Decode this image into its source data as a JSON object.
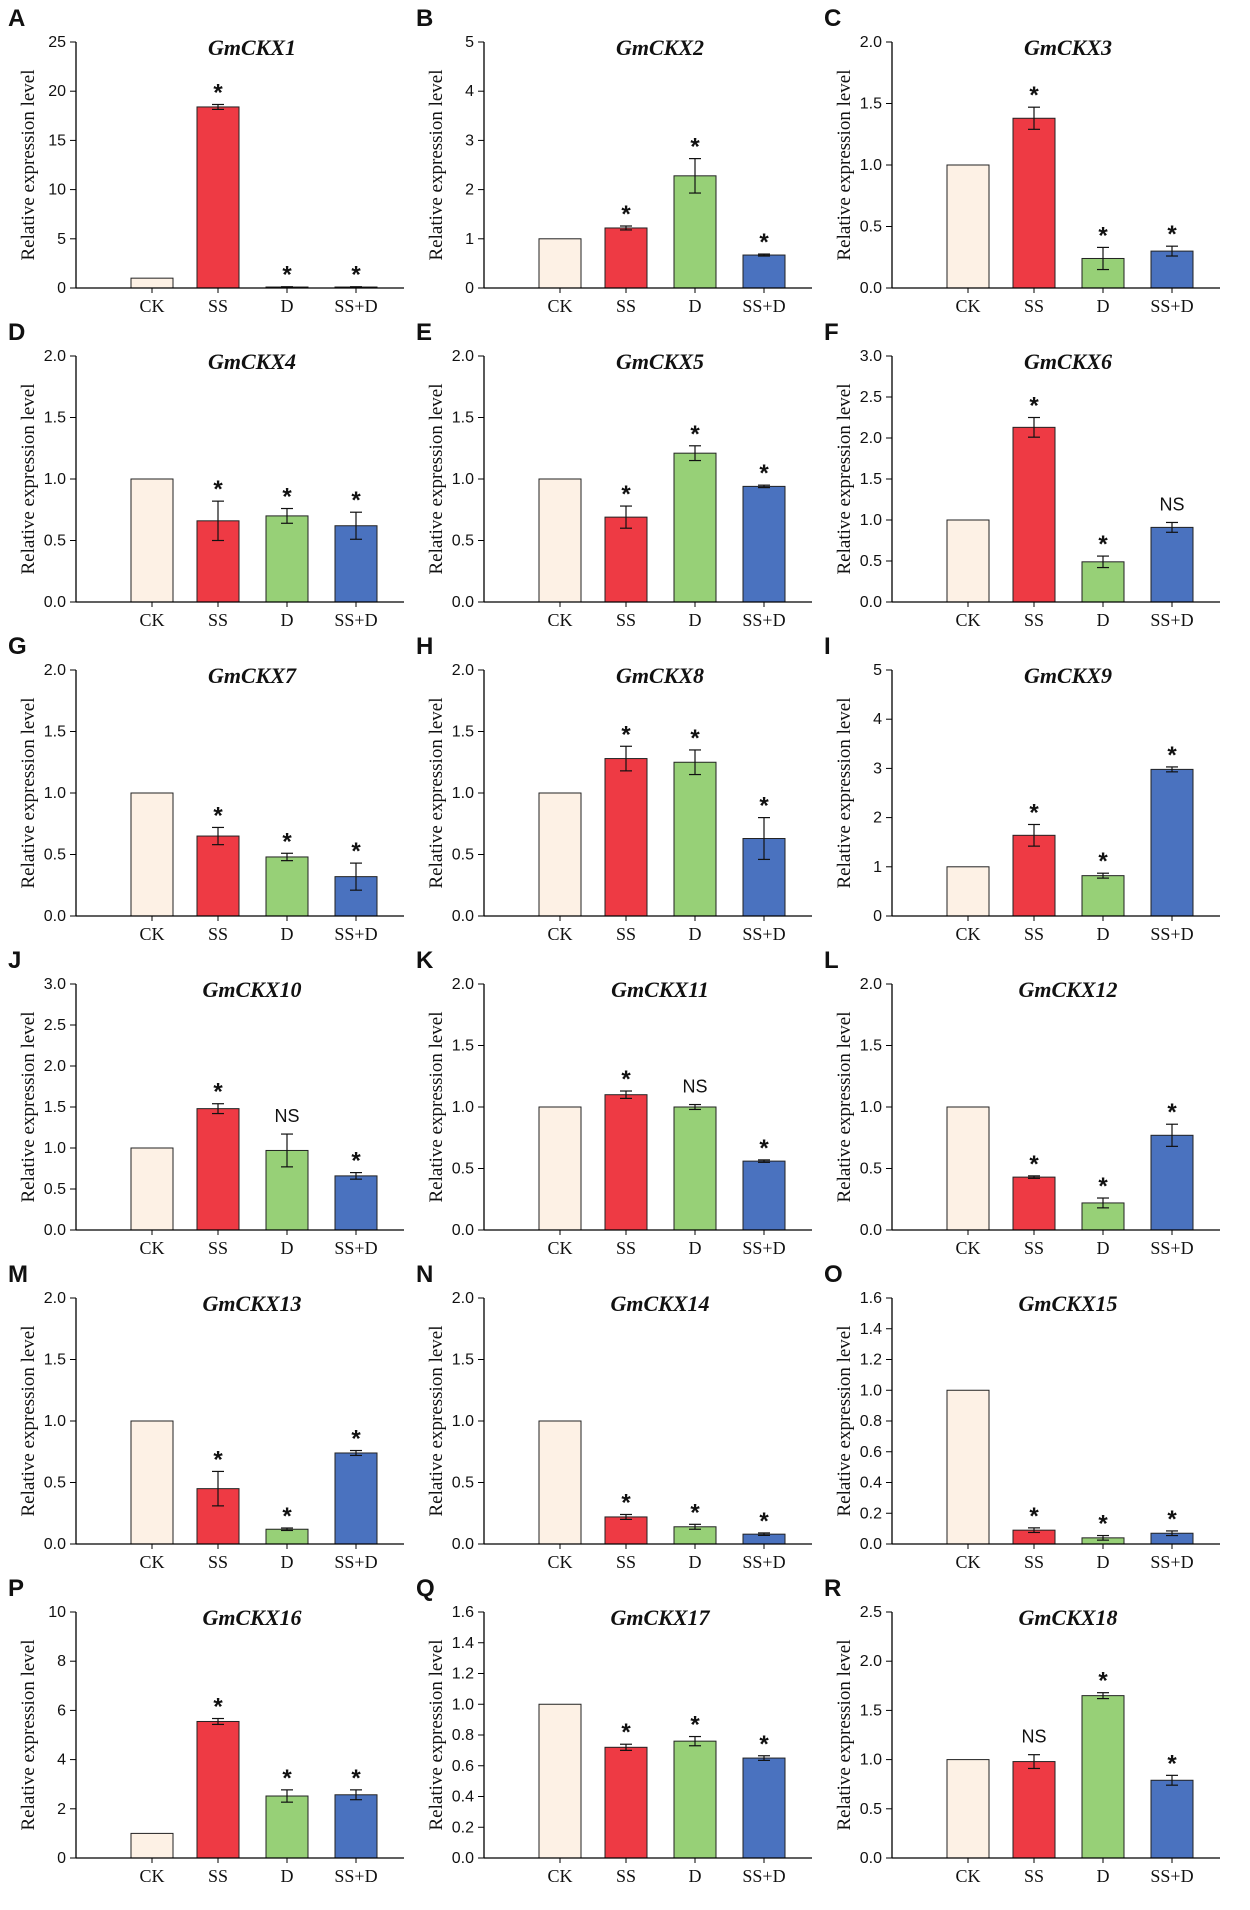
{
  "figure": {
    "categories": [
      "CK",
      "SS",
      "D",
      "SS+D"
    ],
    "bar_colors": [
      "#fdf1e5",
      "#ee3a44",
      "#97d077",
      "#4a72bf"
    ],
    "axis_color": "#000000"
  },
  "chart_data": [
    {
      "type": "bar",
      "panel": "A",
      "title": "GmCKX1",
      "ylabel": "Relative expression level",
      "categories": [
        "CK",
        "SS",
        "D",
        "SS+D"
      ],
      "ylim": [
        0,
        25
      ],
      "yticks": [
        "0",
        "5",
        "10",
        "15",
        "20",
        "25"
      ],
      "values": [
        1.0,
        18.4,
        0.1,
        0.1
      ],
      "errors": [
        0,
        0.25,
        0.03,
        0.03
      ],
      "significance": [
        "",
        "*",
        "*",
        "*"
      ]
    },
    {
      "type": "bar",
      "panel": "B",
      "title": "GmCKX2",
      "ylabel": "Relative expression level",
      "categories": [
        "CK",
        "SS",
        "D",
        "SS+D"
      ],
      "ylim": [
        0,
        5
      ],
      "yticks": [
        "0",
        "1",
        "2",
        "3",
        "4",
        "5"
      ],
      "values": [
        1.0,
        1.22,
        2.28,
        0.67
      ],
      "errors": [
        0,
        0.04,
        0.35,
        0.02
      ],
      "significance": [
        "",
        "*",
        "*",
        "*"
      ]
    },
    {
      "type": "bar",
      "panel": "C",
      "title": "GmCKX3",
      "ylabel": "Relative expression level",
      "categories": [
        "CK",
        "SS",
        "D",
        "SS+D"
      ],
      "ylim": [
        0,
        2.0
      ],
      "yticks": [
        "0.0",
        "0.5",
        "1.0",
        "1.5",
        "2.0"
      ],
      "values": [
        1.0,
        1.38,
        0.24,
        0.3
      ],
      "errors": [
        0,
        0.09,
        0.09,
        0.04
      ],
      "significance": [
        "",
        "*",
        "*",
        "*"
      ]
    },
    {
      "type": "bar",
      "panel": "D",
      "title": "GmCKX4",
      "ylabel": "Relative expression level",
      "categories": [
        "CK",
        "SS",
        "D",
        "SS+D"
      ],
      "ylim": [
        0,
        2.0
      ],
      "yticks": [
        "0.0",
        "0.5",
        "1.0",
        "1.5",
        "2.0"
      ],
      "values": [
        1.0,
        0.66,
        0.7,
        0.62
      ],
      "errors": [
        0,
        0.16,
        0.06,
        0.11
      ],
      "significance": [
        "",
        "*",
        "*",
        "*"
      ]
    },
    {
      "type": "bar",
      "panel": "E",
      "title": "GmCKX5",
      "ylabel": "Relative expression level",
      "categories": [
        "CK",
        "SS",
        "D",
        "SS+D"
      ],
      "ylim": [
        0,
        2.0
      ],
      "yticks": [
        "0.0",
        "0.5",
        "1.0",
        "1.5",
        "2.0"
      ],
      "values": [
        1.0,
        0.69,
        1.21,
        0.94
      ],
      "errors": [
        0,
        0.09,
        0.06,
        0.01
      ],
      "significance": [
        "",
        "*",
        "*",
        "*"
      ]
    },
    {
      "type": "bar",
      "panel": "F",
      "title": "GmCKX6",
      "ylabel": "Relative expression level",
      "categories": [
        "CK",
        "SS",
        "D",
        "SS+D"
      ],
      "ylim": [
        0,
        3.0
      ],
      "yticks": [
        "0.0",
        "0.5",
        "1.0",
        "1.5",
        "2.0",
        "2.5",
        "3.0"
      ],
      "values": [
        1.0,
        2.13,
        0.49,
        0.91
      ],
      "errors": [
        0,
        0.12,
        0.07,
        0.06
      ],
      "significance": [
        "",
        "*",
        "*",
        "NS"
      ]
    },
    {
      "type": "bar",
      "panel": "G",
      "title": "GmCKX7",
      "ylabel": "Relative expression level",
      "categories": [
        "CK",
        "SS",
        "D",
        "SS+D"
      ],
      "ylim": [
        0,
        2.0
      ],
      "yticks": [
        "0.0",
        "0.5",
        "1.0",
        "1.5",
        "2.0"
      ],
      "values": [
        1.0,
        0.65,
        0.48,
        0.32
      ],
      "errors": [
        0,
        0.07,
        0.03,
        0.11
      ],
      "significance": [
        "",
        "*",
        "*",
        "*"
      ]
    },
    {
      "type": "bar",
      "panel": "H",
      "title": "GmCKX8",
      "ylabel": "Relative expression level",
      "categories": [
        "CK",
        "SS",
        "D",
        "SS+D"
      ],
      "ylim": [
        0,
        2.0
      ],
      "yticks": [
        "0.0",
        "0.5",
        "1.0",
        "1.5",
        "2.0"
      ],
      "values": [
        1.0,
        1.28,
        1.25,
        0.63
      ],
      "errors": [
        0,
        0.1,
        0.1,
        0.17
      ],
      "significance": [
        "",
        "*",
        "*",
        "*"
      ]
    },
    {
      "type": "bar",
      "panel": "I",
      "title": "GmCKX9",
      "ylabel": "Relative expression level",
      "categories": [
        "CK",
        "SS",
        "D",
        "SS+D"
      ],
      "ylim": [
        0,
        5
      ],
      "yticks": [
        "0",
        "1",
        "2",
        "3",
        "4",
        "5"
      ],
      "values": [
        1.0,
        1.64,
        0.82,
        2.98
      ],
      "errors": [
        0,
        0.22,
        0.05,
        0.05
      ],
      "significance": [
        "",
        "*",
        "*",
        "*"
      ]
    },
    {
      "type": "bar",
      "panel": "J",
      "title": "GmCKX10",
      "ylabel": "Relative expression level",
      "categories": [
        "CK",
        "SS",
        "D",
        "SS+D"
      ],
      "ylim": [
        0,
        3.0
      ],
      "yticks": [
        "0.0",
        "0.5",
        "1.0",
        "1.5",
        "2.0",
        "2.5",
        "3.0"
      ],
      "values": [
        1.0,
        1.48,
        0.97,
        0.66
      ],
      "errors": [
        0,
        0.06,
        0.2,
        0.04
      ],
      "significance": [
        "",
        "*",
        "NS",
        "*"
      ]
    },
    {
      "type": "bar",
      "panel": "K",
      "title": "GmCKX11",
      "ylabel": "Relative expression level",
      "categories": [
        "CK",
        "SS",
        "D",
        "SS+D"
      ],
      "ylim": [
        0,
        2.0
      ],
      "yticks": [
        "0.0",
        "0.5",
        "1.0",
        "1.5",
        "2.0"
      ],
      "values": [
        1.0,
        1.1,
        1.0,
        0.56
      ],
      "errors": [
        0,
        0.03,
        0.02,
        0.01
      ],
      "significance": [
        "",
        "*",
        "NS",
        "*"
      ]
    },
    {
      "type": "bar",
      "panel": "L",
      "title": "GmCKX12",
      "ylabel": "Relative expression level",
      "categories": [
        "CK",
        "SS",
        "D",
        "SS+D"
      ],
      "ylim": [
        0,
        2.0
      ],
      "yticks": [
        "0.0",
        "0.5",
        "1.0",
        "1.5",
        "2.0"
      ],
      "values": [
        1.0,
        0.43,
        0.22,
        0.77
      ],
      "errors": [
        0,
        0.01,
        0.04,
        0.09
      ],
      "significance": [
        "",
        "*",
        "*",
        "*"
      ]
    },
    {
      "type": "bar",
      "panel": "M",
      "title": "GmCKX13",
      "ylabel": "Relative expression level",
      "categories": [
        "CK",
        "SS",
        "D",
        "SS+D"
      ],
      "ylim": [
        0,
        2.0
      ],
      "yticks": [
        "0.0",
        "0.5",
        "1.0",
        "1.5",
        "2.0"
      ],
      "values": [
        1.0,
        0.45,
        0.12,
        0.74
      ],
      "errors": [
        0,
        0.14,
        0.01,
        0.02
      ],
      "significance": [
        "",
        "*",
        "*",
        "*"
      ]
    },
    {
      "type": "bar",
      "panel": "N",
      "title": "GmCKX14",
      "ylabel": "Relative expression level",
      "categories": [
        "CK",
        "SS",
        "D",
        "SS+D"
      ],
      "ylim": [
        0,
        2.0
      ],
      "yticks": [
        "0.0",
        "0.5",
        "1.0",
        "1.5",
        "2.0"
      ],
      "values": [
        1.0,
        0.22,
        0.14,
        0.08
      ],
      "errors": [
        0,
        0.02,
        0.02,
        0.01
      ],
      "significance": [
        "",
        "*",
        "*",
        "*"
      ]
    },
    {
      "type": "bar",
      "panel": "O",
      "title": "GmCKX15",
      "ylabel": "Relative expression level",
      "categories": [
        "CK",
        "SS",
        "D",
        "SS+D"
      ],
      "ylim": [
        0,
        1.6
      ],
      "yticks": [
        "0.0",
        "0.2",
        "0.4",
        "0.6",
        "0.8",
        "1.0",
        "1.2",
        "1.4",
        "1.6"
      ],
      "values": [
        1.0,
        0.09,
        0.04,
        0.07
      ],
      "errors": [
        0,
        0.015,
        0.015,
        0.015
      ],
      "significance": [
        "",
        "*",
        "*",
        "*"
      ]
    },
    {
      "type": "bar",
      "panel": "P",
      "title": "GmCKX16",
      "ylabel": "Relative expression level",
      "categories": [
        "CK",
        "SS",
        "D",
        "SS+D"
      ],
      "ylim": [
        0,
        10
      ],
      "yticks": [
        "0",
        "2",
        "4",
        "6",
        "8",
        "10"
      ],
      "values": [
        1.0,
        5.55,
        2.52,
        2.57
      ],
      "errors": [
        0,
        0.12,
        0.25,
        0.2
      ],
      "significance": [
        "",
        "*",
        "*",
        "*"
      ]
    },
    {
      "type": "bar",
      "panel": "Q",
      "title": "GmCKX17",
      "ylabel": "Relative expression level",
      "categories": [
        "CK",
        "SS",
        "D",
        "SS+D"
      ],
      "ylim": [
        0,
        1.6
      ],
      "yticks": [
        "0.0",
        "0.2",
        "0.4",
        "0.6",
        "0.8",
        "1.0",
        "1.2",
        "1.4",
        "1.6"
      ],
      "values": [
        1.0,
        0.72,
        0.76,
        0.65
      ],
      "errors": [
        0,
        0.02,
        0.03,
        0.015
      ],
      "significance": [
        "",
        "*",
        "*",
        "*"
      ]
    },
    {
      "type": "bar",
      "panel": "R",
      "title": "GmCKX18",
      "ylabel": "Relative expression level",
      "categories": [
        "CK",
        "SS",
        "D",
        "SS+D"
      ],
      "ylim": [
        0,
        2.5
      ],
      "yticks": [
        "0.0",
        "0.5",
        "1.0",
        "1.5",
        "2.0",
        "2.5"
      ],
      "values": [
        1.0,
        0.98,
        1.65,
        0.79
      ],
      "errors": [
        0,
        0.07,
        0.03,
        0.05
      ],
      "significance": [
        "",
        "NS",
        "*",
        "*"
      ]
    }
  ]
}
